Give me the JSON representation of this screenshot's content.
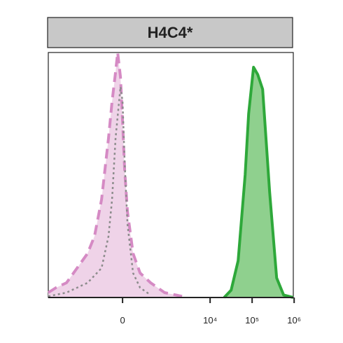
{
  "chart_data": {
    "type": "area",
    "title": "H4C4*",
    "xscale": "biexponential",
    "xlim": [
      -4830,
      955000
    ],
    "xticks": [
      0,
      {
        "value": 10000,
        "label": "10⁴"
      },
      {
        "value": 100000,
        "label": "10⁵"
      },
      {
        "value": 1000000,
        "label": "10⁶"
      }
    ],
    "ylim": [
      0,
      100
    ],
    "series": [
      {
        "color": "#d58ac4",
        "fill": "#efd3e8",
        "line_style": "dashed",
        "x": [
          -4830,
          -3160,
          -1776,
          -993,
          -550,
          -366,
          -235,
          -140,
          -100,
          -65,
          -45,
          -19,
          0,
          19,
          45,
          100,
          184,
          366,
          817,
          2150
        ],
        "values": [
          2,
          4,
          6,
          12,
          18,
          25,
          40,
          65,
          80,
          92,
          100,
          90,
          72,
          52,
          35,
          18,
          10,
          6,
          2,
          0.5
        ]
      },
      {
        "color": "#8c8c8c",
        "line_style": "dotted",
        "x": [
          -4830,
          -1776,
          -550,
          -235,
          -140,
          -100,
          -65,
          -19,
          0,
          19,
          45,
          100,
          184,
          366
        ],
        "values": [
          0.5,
          2,
          6,
          12,
          25,
          40,
          65,
          86,
          80,
          55,
          30,
          10,
          4,
          1
        ]
      },
      {
        "color": "#2ea83a",
        "fill": "#8fd08e",
        "line_style": "solid",
        "x": [
          21600,
          31700,
          46400,
          68300,
          82700,
          108000,
          136000,
          178000,
          261000,
          383000,
          562000,
          955000
        ],
        "values": [
          0,
          3,
          15,
          50,
          75,
          94,
          91,
          85,
          43,
          8,
          1,
          0
        ]
      }
    ]
  }
}
